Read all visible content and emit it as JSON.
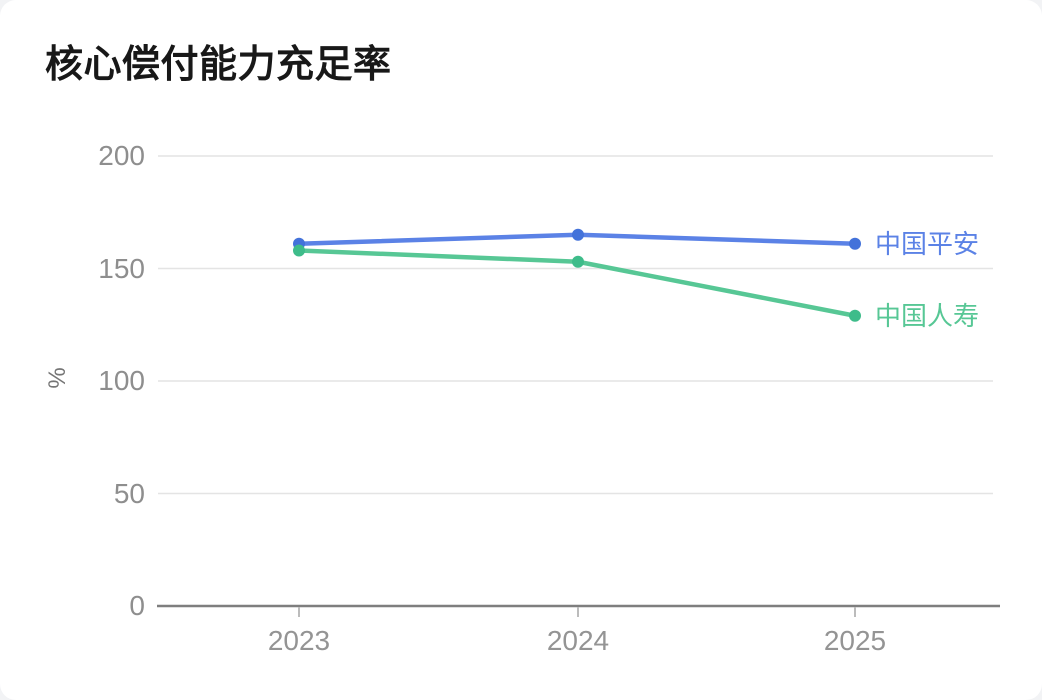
{
  "chart_data": {
    "type": "line",
    "title": "核心偿付能力充足率",
    "xlabel": "",
    "ylabel": "%",
    "categories": [
      "2023",
      "2024",
      "2025"
    ],
    "series": [
      {
        "name": "中国平安",
        "values": [
          161,
          165,
          161
        ],
        "color": "#5b82e6",
        "marker_color": "#4372da"
      },
      {
        "name": "中国人寿",
        "values": [
          158,
          153,
          129
        ],
        "color": "#57c795",
        "marker_color": "#3ebc8a"
      }
    ],
    "ylim": [
      0,
      200
    ],
    "yticks": [
      200,
      150,
      100,
      50,
      0
    ],
    "grid": true,
    "legend_position": "line-end-labels"
  },
  "style": {
    "grid_color": "#e4e4e4",
    "axis_color": "#7e7e7e",
    "tick_color": "#bcbcbc",
    "title_color": "#181818",
    "tick_label_color": "#8e8e8e",
    "card_background": "#ffffff"
  }
}
